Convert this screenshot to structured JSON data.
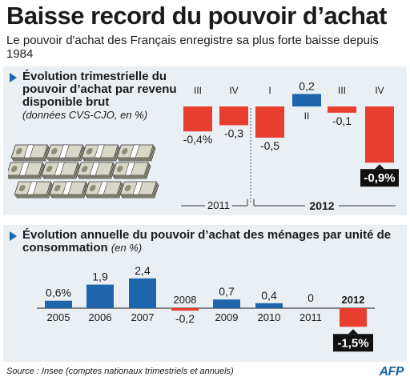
{
  "header": {
    "title": "Baisse record du pouvoir d’achat",
    "subtitle": "Le pouvoir d'achat des Français enregistre sa plus forte baisse depuis 1984"
  },
  "colors": {
    "positive": "#1d66ab",
    "negative": "#e83e2f",
    "panel": "#eaeff4",
    "accent": "#1d66ab",
    "highlight_label": "#111111"
  },
  "icons": {
    "section_marker": "triangle-right-icon",
    "illustration": "banknote-stack-icon",
    "logo": "afp-logo"
  },
  "footer": {
    "source": "Source : Insee (comptes nationaux trimestriels et annuels)",
    "logo_text": "AFP"
  },
  "chart_data": [
    {
      "type": "bar",
      "title": "Évolution trimestrielle du pouvoir d’achat par revenu disponible brut",
      "note": "(données CVS-CJO, en %)",
      "categories": [
        "III",
        "IV",
        "I",
        "II",
        "III",
        "IV"
      ],
      "values": [
        -0.4,
        -0.3,
        -0.5,
        0.2,
        -0.1,
        -0.9
      ],
      "value_labels": [
        "-0,4%",
        "-0,3",
        "-0,5",
        "0,2",
        "-0,1",
        "-0,9%"
      ],
      "groups": [
        {
          "label": "2011",
          "categories": [
            0,
            1
          ]
        },
        {
          "label": "2012",
          "categories": [
            2,
            3,
            4,
            5
          ]
        }
      ],
      "highlight_index": 5,
      "ylim": [
        -1.0,
        0.3
      ]
    },
    {
      "type": "bar",
      "title": "Évolution annuelle du pouvoir d’achat des ménages par unité de consommation",
      "note": "(en %)",
      "categories": [
        "2005",
        "2006",
        "2007",
        "2008",
        "2009",
        "2010",
        "2011",
        "2012"
      ],
      "values": [
        0.6,
        1.9,
        2.4,
        -0.2,
        0.7,
        0.4,
        0,
        -1.5
      ],
      "value_labels": [
        "0,6%",
        "1,9",
        "2,4",
        "-0,2",
        "0,7",
        "0,4",
        "0",
        "-1,5%"
      ],
      "highlight_index": 7,
      "ylim": [
        -1.8,
        2.6
      ]
    }
  ]
}
